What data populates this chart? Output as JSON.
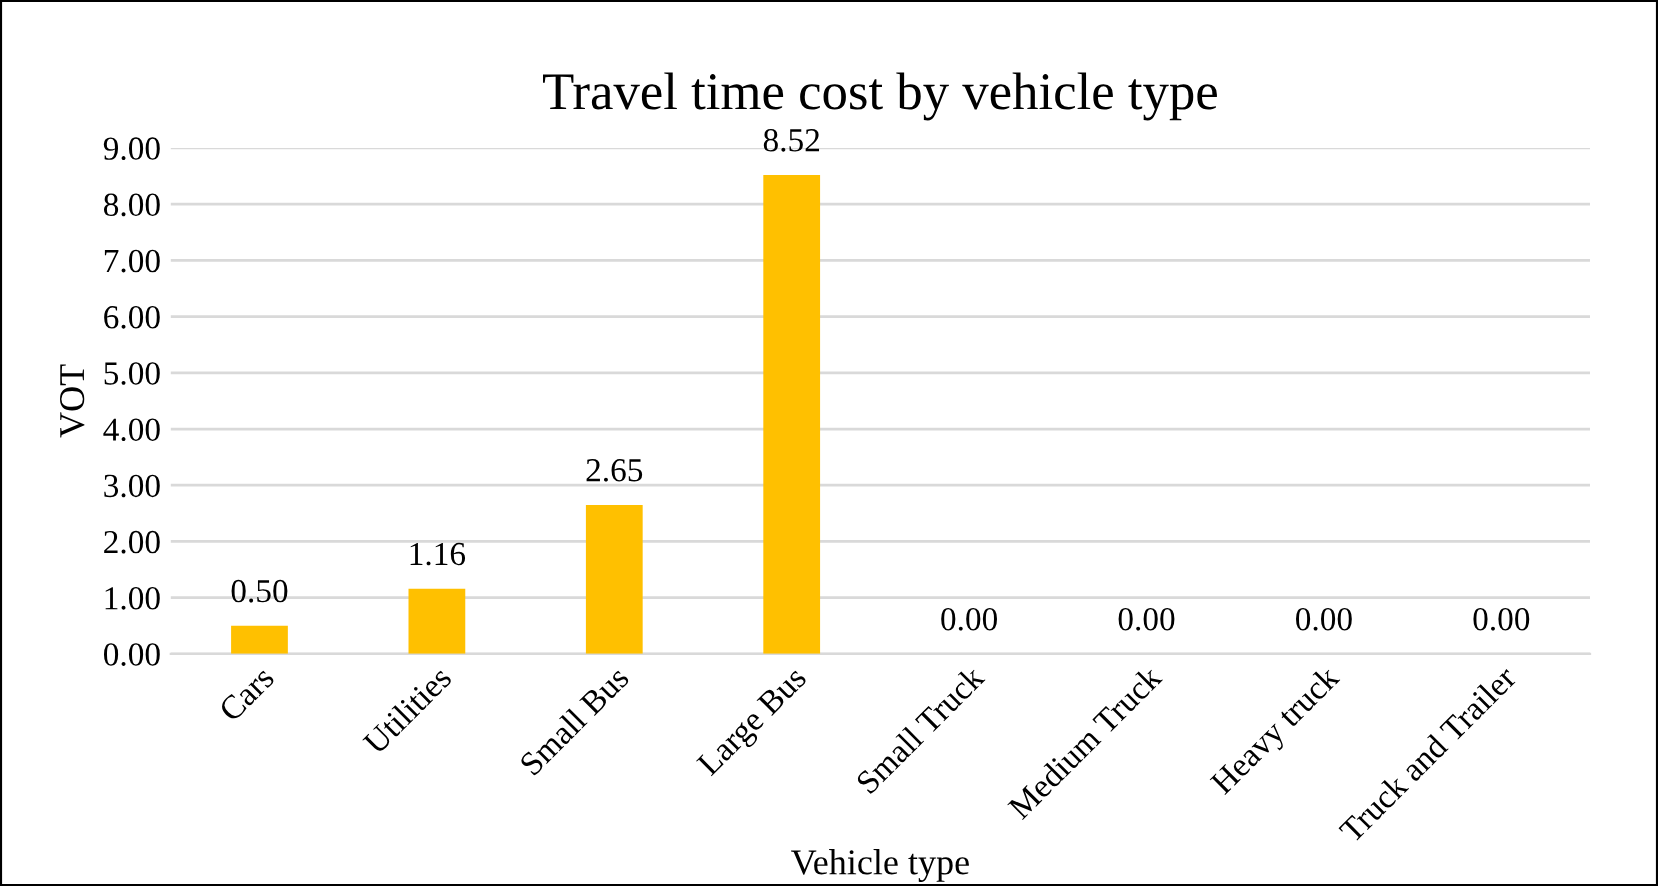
{
  "chart_data": {
    "type": "bar",
    "title": "Travel time cost by vehicle type",
    "xlabel": "Vehicle type",
    "ylabel": "VOT",
    "categories": [
      "Cars",
      "Utilities",
      "Small Bus",
      "Large Bus",
      "Small Truck",
      "Medium Truck",
      "Heavy truck",
      "Truck and Trailer"
    ],
    "values": [
      0.5,
      1.16,
      2.65,
      8.52,
      0.0,
      0.0,
      0.0,
      0.0
    ],
    "value_labels": [
      "0.50",
      "1.16",
      "2.65",
      "8.52",
      "0.00",
      "0.00",
      "0.00",
      "0.00"
    ],
    "color": "#ffc000",
    "ylim": [
      0,
      9
    ],
    "yticks": [
      {
        "value": 0,
        "label": "0.00"
      },
      {
        "value": 1,
        "label": "1.00"
      },
      {
        "value": 2,
        "label": "2.00"
      },
      {
        "value": 3,
        "label": "3.00"
      },
      {
        "value": 4,
        "label": "4.00"
      },
      {
        "value": 5,
        "label": "5.00"
      },
      {
        "value": 6,
        "label": "6.00"
      },
      {
        "value": 7,
        "label": "7.00"
      },
      {
        "value": 8,
        "label": "8.00"
      },
      {
        "value": 9,
        "label": "9.00"
      }
    ],
    "grid": "y"
  }
}
